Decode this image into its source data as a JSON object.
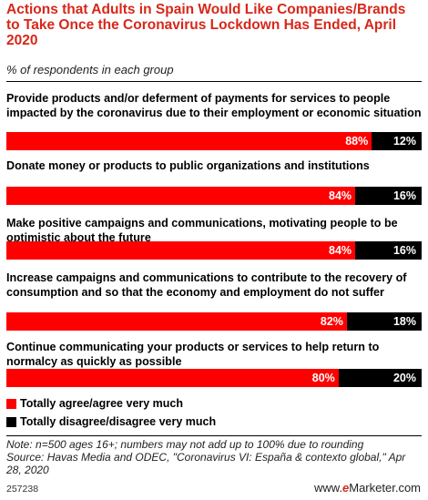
{
  "title": "Actions that Adults in Spain Would Like Companies/Brands to Take Once the Coronavirus Lockdown Has Ended, April 2020",
  "subtitle": "% of respondents in each group",
  "colors": {
    "agree": "#ff0000",
    "disagree": "#000000",
    "title": "#d7271a"
  },
  "chart_data": {
    "type": "bar",
    "orientation": "horizontal",
    "stacked": true,
    "categories": [
      "Provide products and/or deferment of payments for services to people impacted by the coronavirus due to their employment or economic situation",
      "Donate money or products to public organizations and institutions",
      "Make positive campaigns and communications, motivating people to be optimistic about the future",
      "Increase campaigns and communications to contribute to the recovery of consumption and so that the economy and employment do not suffer",
      "Continue communicating your products or services to help return to normalcy as quickly as possible"
    ],
    "series": [
      {
        "name": "Totally agree/agree very much",
        "values": [
          88,
          84,
          84,
          82,
          80
        ],
        "labels": [
          "88%",
          "84%",
          "84%",
          "82%",
          "80%"
        ]
      },
      {
        "name": "Totally disagree/disagree very much",
        "values": [
          12,
          16,
          16,
          18,
          20
        ],
        "labels": [
          "12%",
          "16%",
          "16%",
          "18%",
          "20%"
        ]
      }
    ],
    "xlim": [
      0,
      100
    ],
    "legend_position": "bottom-left"
  },
  "note": "Note: n=500 ages 16+; numbers may not add up to 100% due to rounding\nSource: Havas Media and ODEC, \"Coronavirus VI: España & contexto global,\" Apr 28, 2020",
  "footer": {
    "chart_id": "257238",
    "brand_prefix": "www.",
    "brand_e": "e",
    "brand_rest": "Marketer",
    "brand_suffix": ".com"
  }
}
